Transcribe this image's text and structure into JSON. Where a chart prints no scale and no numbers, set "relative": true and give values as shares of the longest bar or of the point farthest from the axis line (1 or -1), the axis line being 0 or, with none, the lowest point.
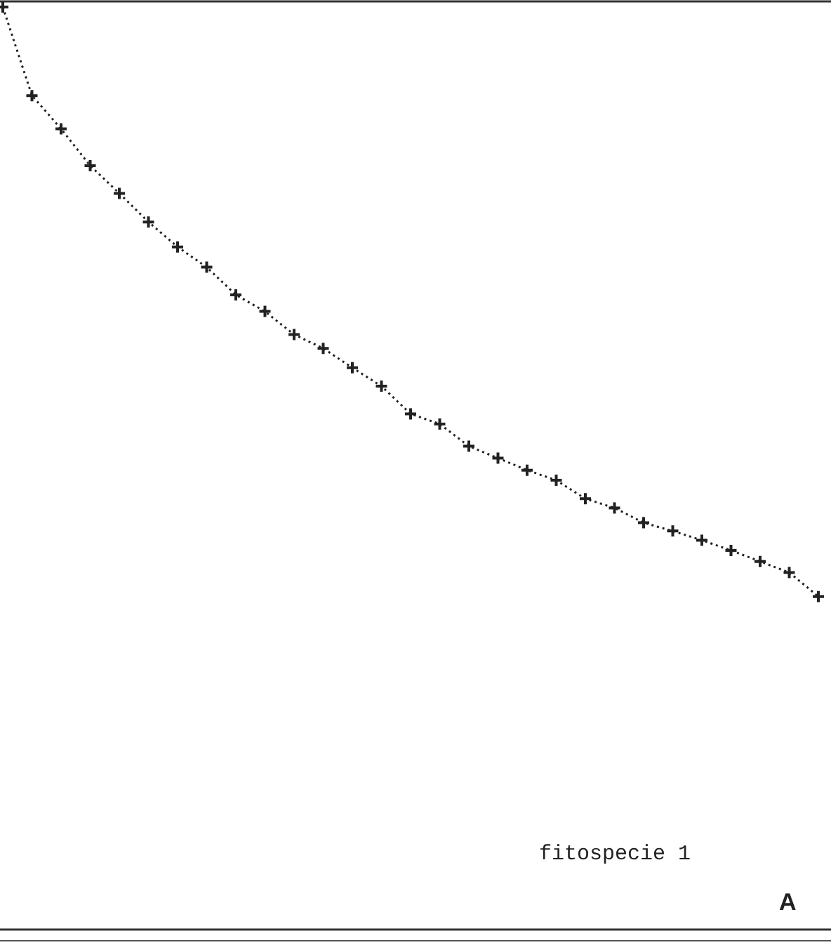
{
  "chart_data": {
    "type": "line",
    "relative": true,
    "categories": [
      null,
      null,
      null,
      null,
      null,
      null,
      null,
      null,
      null,
      null,
      null,
      null,
      null,
      null,
      null,
      null,
      null,
      null,
      null,
      null,
      null,
      null,
      null,
      null,
      null,
      null,
      null,
      null,
      null
    ],
    "series": [
      {
        "color": "#222222",
        "values": [
          1,
          0.904,
          0.868,
          0.828,
          0.798,
          0.767,
          0.74,
          0.718,
          0.688,
          0.67,
          0.645,
          0.63,
          0.609,
          0.589,
          0.559,
          0.548,
          0.524,
          0.511,
          0.498,
          0.487,
          0.467,
          0.457,
          0.441,
          0.432,
          0.422,
          0.411,
          0.399,
          0.387,
          0.361
        ]
      }
    ],
    "marker": "cross",
    "line_style": "dotted",
    "annotations": [
      "fitospecie 1",
      "A"
    ]
  }
}
